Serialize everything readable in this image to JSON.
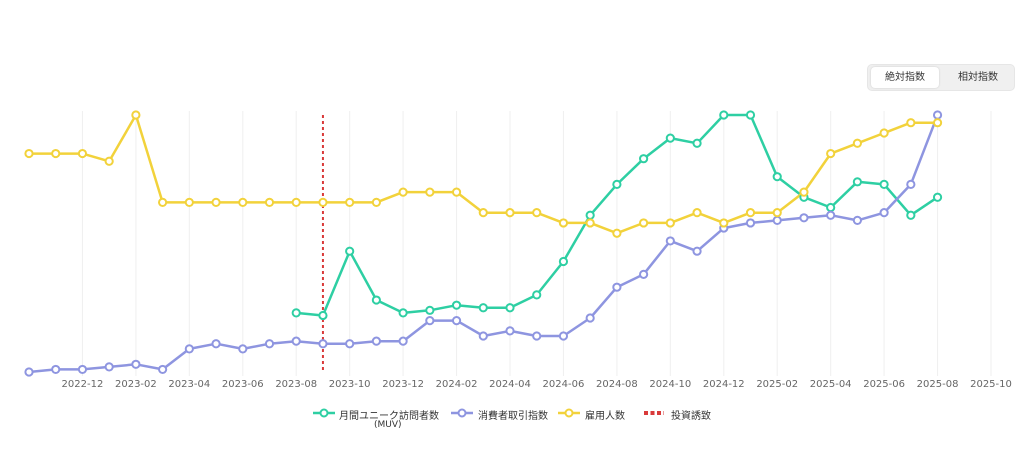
{
  "toggle": {
    "absolute_label": "絶対指数",
    "relative_label": "相対指数",
    "active": "absolute"
  },
  "legend": {
    "muv_label": "月間ユニーク訪問者数",
    "muv_sublabel": "(MUV)",
    "consumer_label": "消費者取引指数",
    "employees_label": "雇用人数",
    "investment_label": "投資誘致"
  },
  "colors": {
    "muv": "#2ecfa3",
    "consumer": "#8e95e0",
    "employees": "#f2d23b",
    "investment": "#d93a3a",
    "grid": "#efefef",
    "tick": "#666666"
  },
  "chart_data": {
    "type": "line",
    "x": [
      "2022-10",
      "2022-11",
      "2022-12",
      "2023-01",
      "2023-02",
      "2023-03",
      "2023-04",
      "2023-05",
      "2023-06",
      "2023-07",
      "2023-08",
      "2023-09",
      "2023-10",
      "2023-11",
      "2023-12",
      "2024-01",
      "2024-02",
      "2024-03",
      "2024-04",
      "2024-05",
      "2024-06",
      "2024-07",
      "2024-08",
      "2024-09",
      "2024-10",
      "2024-11",
      "2024-12",
      "2025-01",
      "2025-02",
      "2025-03",
      "2025-04",
      "2025-05",
      "2025-06",
      "2025-07",
      "2025-08"
    ],
    "x_ticks": [
      "2022-12",
      "2023-02",
      "2023-04",
      "2023-06",
      "2023-08",
      "2023-10",
      "2023-12",
      "2024-02",
      "2024-04",
      "2024-06",
      "2024-08",
      "2024-10",
      "2024-12",
      "2025-02",
      "2025-04",
      "2025-06",
      "2025-08",
      "2025-10"
    ],
    "x_range": [
      "2022-10",
      "2025-10"
    ],
    "ylim": [
      0,
      100
    ],
    "grid": true,
    "legend_position": "bottom",
    "series": [
      {
        "name": "月間ユニーク訪問者数",
        "key": "muv",
        "values": [
          null,
          null,
          null,
          null,
          null,
          null,
          null,
          null,
          null,
          null,
          23,
          22,
          47,
          28,
          23,
          24,
          26,
          25,
          25,
          30,
          43,
          61,
          73,
          83,
          91,
          89,
          100,
          100,
          76,
          68,
          64,
          74,
          73,
          61,
          68
        ]
      },
      {
        "name": "消費者取引指数",
        "key": "consumer",
        "values": [
          0,
          1,
          1,
          2,
          3,
          1,
          9,
          11,
          9,
          11,
          12,
          11,
          11,
          12,
          12,
          20,
          20,
          14,
          16,
          14,
          14,
          21,
          33,
          38,
          51,
          47,
          56,
          58,
          59,
          60,
          61,
          59,
          62,
          73,
          100
        ]
      },
      {
        "name": "雇用人数",
        "key": "employees",
        "values": [
          85,
          85,
          85,
          82,
          100,
          66,
          66,
          66,
          66,
          66,
          66,
          66,
          66,
          66,
          70,
          70,
          70,
          62,
          62,
          62,
          58,
          58,
          54,
          58,
          58,
          62,
          58,
          62,
          62,
          70,
          85,
          89,
          93,
          97,
          97
        ]
      }
    ],
    "annotations": [
      {
        "name": "投資誘致",
        "key": "investment",
        "type": "vline",
        "x": "2023-09"
      }
    ]
  }
}
